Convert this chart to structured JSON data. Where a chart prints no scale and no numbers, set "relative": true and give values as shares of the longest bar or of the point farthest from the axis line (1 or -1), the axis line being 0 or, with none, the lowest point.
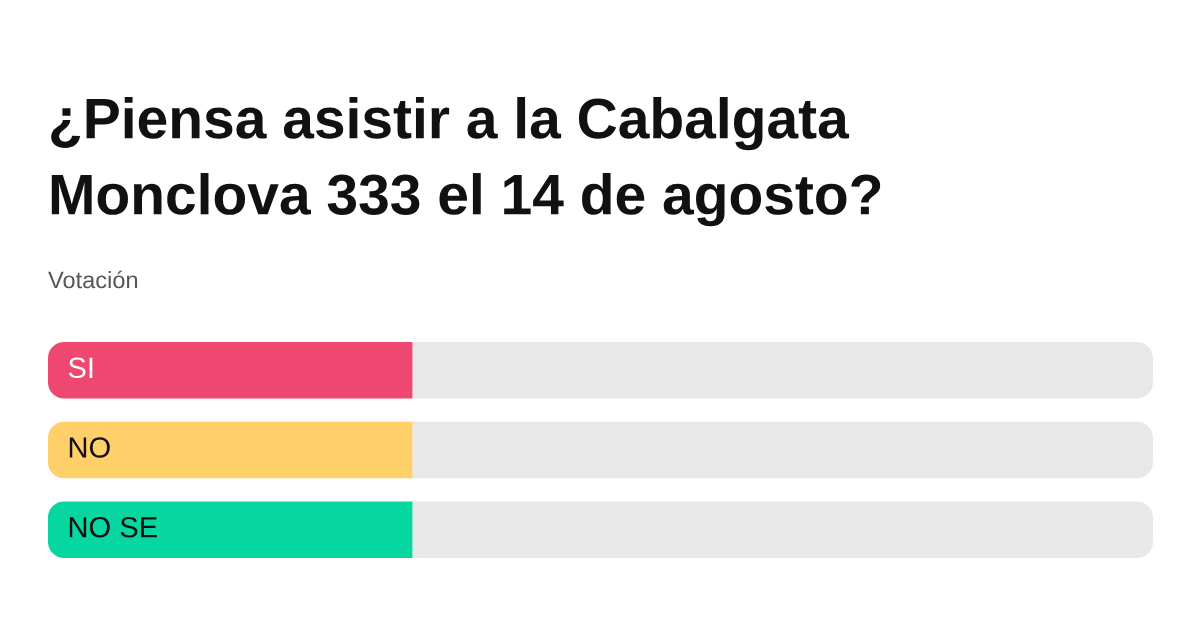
{
  "chart_data": {
    "type": "bar",
    "orientation": "horizontal",
    "stacked": true,
    "relative": true,
    "title": "¿Piensa asistir a la Cabalgata Monclova 333 el 14 de agosto?",
    "subtitle": "Votación",
    "categories": [
      "SI",
      "NO",
      "NO SE"
    ],
    "series": [
      {
        "colors": [
          "#ef4870",
          "#ffd069",
          "#06d6a0"
        ],
        "values": [
          0.33,
          0.33,
          0.33
        ]
      },
      {
        "color": "#e8e8e8",
        "values": [
          0.67,
          0.67,
          0.67
        ]
      }
    ]
  }
}
